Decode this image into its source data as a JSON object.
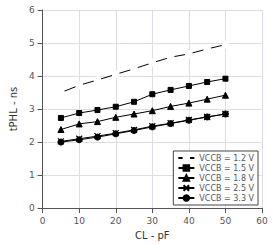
{
  "chart_data": {
    "type": "line",
    "xlabel": "CL - pF",
    "ylabel": "tPHL - ns",
    "x": [
      5,
      10,
      15,
      20,
      25,
      30,
      35,
      40,
      45,
      50
    ],
    "series": [
      {
        "name": "VCCB = 1.2 V",
        "color": "#000000",
        "marker": "circle_open",
        "values": [
          3.5,
          3.72,
          3.88,
          4.05,
          4.22,
          4.4,
          4.57,
          4.67,
          4.82,
          4.95
        ]
      },
      {
        "name": "VCCB = 1.5 V",
        "color": "#000000",
        "marker": "square",
        "values": [
          2.73,
          2.88,
          2.97,
          3.07,
          3.22,
          3.45,
          3.58,
          3.7,
          3.82,
          3.92
        ]
      },
      {
        "name": "VCCB = 1.8 V",
        "color": "#000000",
        "marker": "triangle",
        "values": [
          2.38,
          2.55,
          2.62,
          2.75,
          2.85,
          2.95,
          3.08,
          3.18,
          3.3,
          3.42
        ]
      },
      {
        "name": "VCCB = 2.5 V",
        "color": "#000000",
        "marker": "x",
        "values": [
          2.02,
          2.1,
          2.18,
          2.27,
          2.37,
          2.48,
          2.57,
          2.67,
          2.76,
          2.85
        ]
      },
      {
        "name": "VCCB = 3.3 V",
        "color": "#000000",
        "marker": "circle",
        "values": [
          2.0,
          2.07,
          2.15,
          2.25,
          2.35,
          2.46,
          2.56,
          2.66,
          2.76,
          2.85
        ]
      }
    ],
    "xlim": [
      0,
      60
    ],
    "ylim": [
      0,
      6
    ],
    "xticks": [
      0,
      10,
      20,
      30,
      40,
      50,
      60
    ],
    "yticks": [
      0,
      1,
      2,
      3,
      4,
      5,
      6
    ],
    "grid": true,
    "legend": "lower right"
  }
}
